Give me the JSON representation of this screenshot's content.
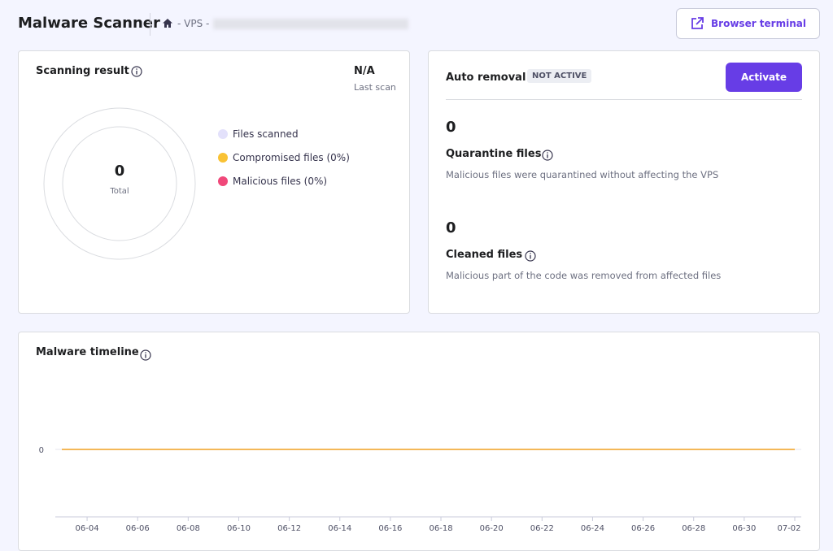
{
  "header": {
    "title": "Malware Scanner",
    "breadcrumb": "- VPS -",
    "button": "Browser terminal"
  },
  "scanning_result": {
    "title": "Scanning result",
    "last_scan_value": "N/A",
    "last_scan_label": "Last scan",
    "total": 0,
    "total_label": "Total",
    "legend": [
      {
        "label": "Files scanned",
        "color": "#e3e1fb"
      },
      {
        "label": "Compromised files (0%)",
        "color": "#f9c235"
      },
      {
        "label": "Malicious files (0%)",
        "color": "#f0487a"
      }
    ]
  },
  "auto_removal": {
    "title": "Auto removal",
    "status": "NOT ACTIVE",
    "button": "Activate",
    "quarantine": {
      "count": 0,
      "title": "Quarantine files",
      "description": "Malicious files were quarantined without affecting the VPS"
    },
    "cleaned": {
      "count": 0,
      "title": "Cleaned files",
      "description": "Malicious part of the code was removed from affected files"
    }
  },
  "chart_data": {
    "type": "line",
    "title": "Malware timeline",
    "categories": [
      null,
      "06-04",
      null,
      "06-06",
      null,
      "06-08",
      null,
      "06-10",
      null,
      "06-12",
      null,
      "06-14",
      null,
      "06-16",
      null,
      "06-18",
      null,
      "06-20",
      null,
      "06-22",
      null,
      "06-24",
      null,
      "06-26",
      null,
      "06-28",
      null,
      "06-30",
      null,
      "07-02"
    ],
    "values": [
      0,
      0,
      0,
      0,
      0,
      0,
      0,
      0,
      0,
      0,
      0,
      0,
      0,
      0,
      0,
      0,
      0,
      0,
      0,
      0,
      0,
      0,
      0,
      0,
      0,
      0,
      0,
      0,
      0,
      0
    ],
    "color": "#f0a020",
    "ylim": [
      -1,
      1
    ],
    "yticks": [
      0
    ],
    "grid": true
  }
}
